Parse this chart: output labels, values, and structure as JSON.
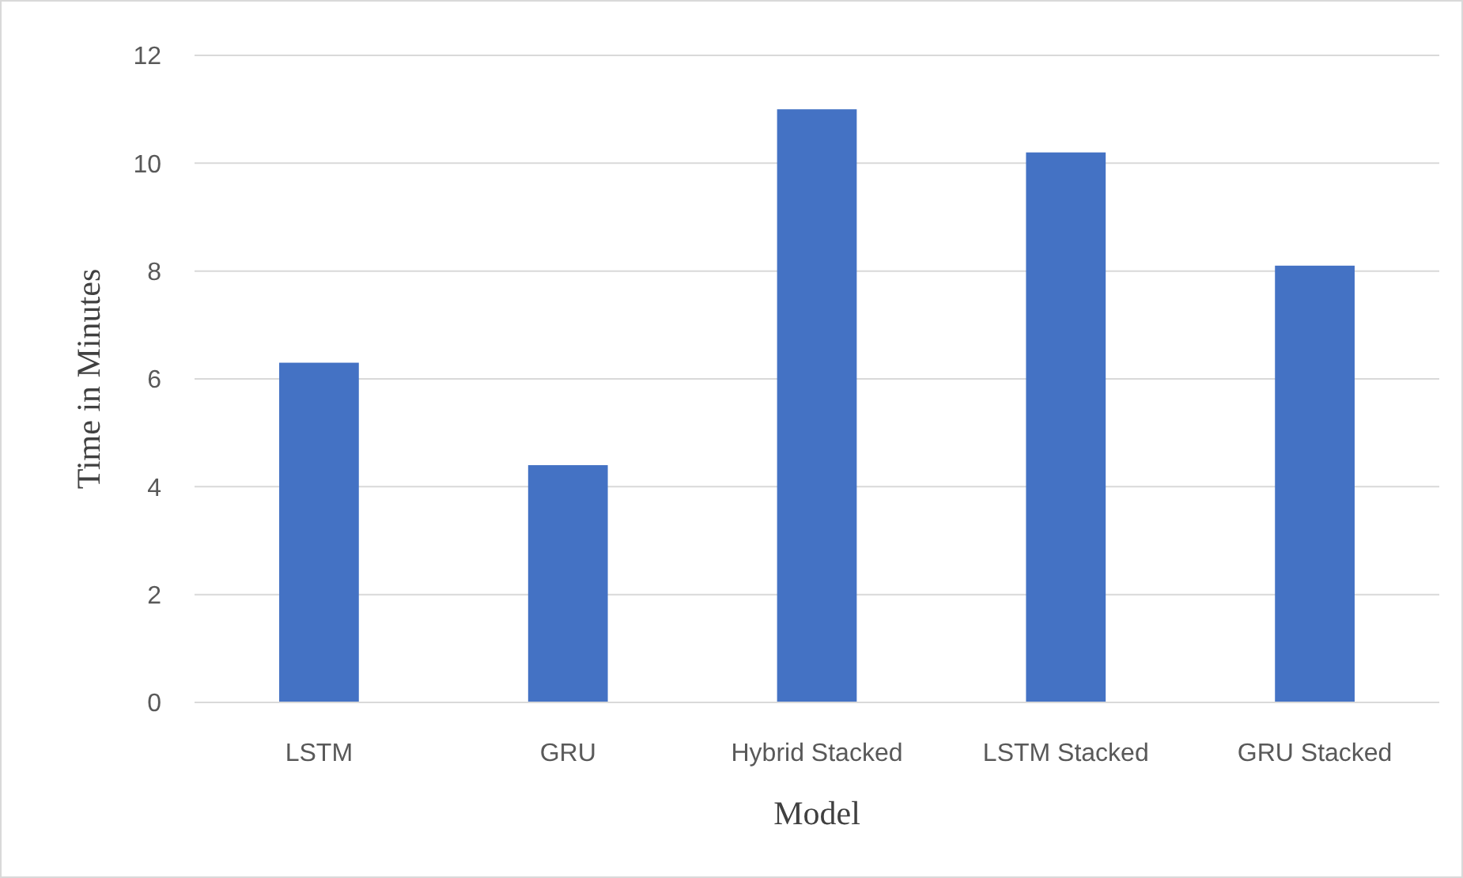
{
  "chart_data": {
    "type": "bar",
    "xlabel": "Model",
    "ylabel": "Time in Minutes",
    "categories": [
      "LSTM",
      "GRU",
      "Hybrid Stacked",
      "LSTM Stacked",
      "GRU Stacked"
    ],
    "values": [
      6.3,
      4.4,
      11.0,
      10.2,
      8.1
    ],
    "color": "#4472c4",
    "ylim": [
      0,
      12
    ],
    "yticks": [
      0,
      2,
      4,
      6,
      8,
      10,
      12
    ],
    "grid": "y"
  }
}
